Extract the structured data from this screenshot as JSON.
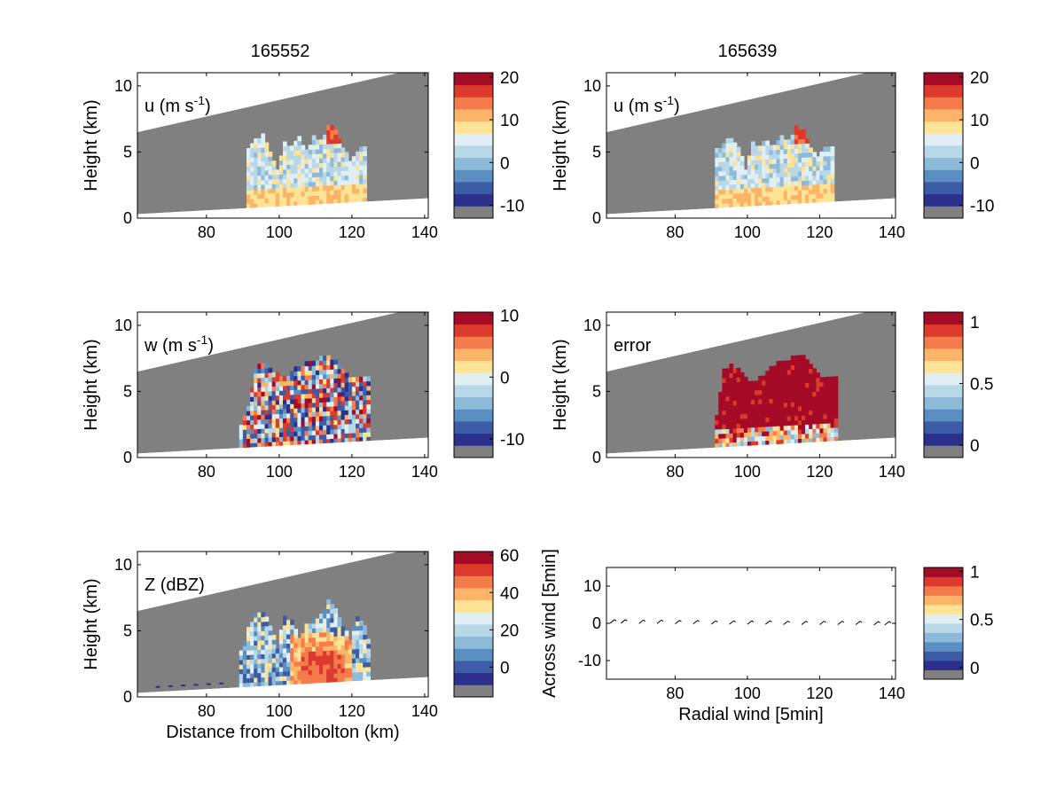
{
  "column_titles": [
    "165552",
    "165639"
  ],
  "colors": {
    "palette": [
      "#808080",
      "#2c2f8c",
      "#3c5ca8",
      "#5b8fc2",
      "#8dbad8",
      "#b8d8e8",
      "#e1eef3",
      "#fde395",
      "#fbb468",
      "#f47c4c",
      "#db3a2c",
      "#a40b26"
    ],
    "terrain_gray": "#808080",
    "frame": "#000000"
  },
  "chart_data": [
    {
      "type": "heatmap",
      "panel": "u-165552",
      "title": "",
      "label": "u (m s",
      "label_sup": "-1",
      "label_tail": ")",
      "ylabel": "Height (km)",
      "xlabel": "",
      "xlim": [
        61,
        141
      ],
      "ylim": [
        0,
        11
      ],
      "xticks": [
        80,
        100,
        120,
        140
      ],
      "yticks": [
        0,
        5,
        10
      ],
      "colorbar": {
        "range": [
          -13,
          21
        ],
        "ticks": [
          -10,
          0,
          10,
          20
        ],
        "tick_labels": [
          "-10",
          "0",
          "10",
          "20"
        ]
      },
      "shading": "u",
      "echo": {
        "x": [
          91,
          93,
          95,
          97,
          99,
          101,
          103,
          105,
          107,
          109,
          111,
          113,
          115,
          117,
          119,
          121,
          123,
          124
        ],
        "top": [
          5.2,
          5.8,
          6.1,
          5.0,
          3.4,
          5.6,
          5.3,
          5.9,
          5.1,
          6.0,
          5.7,
          6.9,
          6.6,
          5.2,
          4.2,
          5.0,
          5.4,
          2.6
        ]
      }
    },
    {
      "type": "heatmap",
      "panel": "u-165639",
      "title": "",
      "label": "u (m s",
      "label_sup": "-1",
      "label_tail": ")",
      "ylabel": "Height (km)",
      "xlabel": "",
      "xlim": [
        61,
        141
      ],
      "ylim": [
        0,
        11
      ],
      "xticks": [
        80,
        100,
        120,
        140
      ],
      "yticks": [
        0,
        5,
        10
      ],
      "colorbar": {
        "range": [
          -13,
          21
        ],
        "ticks": [
          -10,
          0,
          10,
          20
        ],
        "tick_labels": [
          "-10",
          "0",
          "10",
          "20"
        ]
      },
      "shading": "u",
      "echo": {
        "x": [
          91,
          93,
          95,
          97,
          99,
          101,
          103,
          105,
          107,
          109,
          111,
          113,
          115,
          117,
          119,
          121,
          123,
          124
        ],
        "top": [
          5.0,
          5.6,
          6.0,
          5.2,
          3.6,
          5.5,
          5.4,
          5.8,
          5.2,
          6.1,
          5.6,
          6.7,
          6.4,
          5.0,
          4.4,
          5.1,
          5.2,
          2.8
        ]
      }
    },
    {
      "type": "heatmap",
      "panel": "w-165552",
      "title": "",
      "label": "w (m s",
      "label_sup": "-1",
      "label_tail": ")",
      "ylabel": "Height (km)",
      "xlabel": "",
      "xlim": [
        61,
        141
      ],
      "ylim": [
        0,
        11
      ],
      "xticks": [
        80,
        100,
        120,
        140
      ],
      "yticks": [
        0,
        5,
        10
      ],
      "colorbar": {
        "range": [
          -13,
          10.5
        ],
        "ticks": [
          -10,
          0,
          10
        ],
        "tick_labels": [
          "-10",
          "0",
          "10"
        ]
      },
      "shading": "w",
      "echo": {
        "x": [
          89,
          91,
          93,
          95,
          97,
          99,
          101,
          103,
          105,
          107,
          109,
          111,
          113,
          115,
          117,
          119,
          121,
          123,
          125
        ],
        "top": [
          2.4,
          3.6,
          6.6,
          6.9,
          6.7,
          6.2,
          5.9,
          6.3,
          6.8,
          7.0,
          7.2,
          7.4,
          7.6,
          7.1,
          6.4,
          5.8,
          6.0,
          6.1,
          6.0
        ]
      }
    },
    {
      "type": "heatmap",
      "panel": "error-165639",
      "title": "",
      "label": "error",
      "label_sup": "",
      "label_tail": "",
      "ylabel": "Height (km)",
      "xlabel": "",
      "xlim": [
        61,
        141
      ],
      "ylim": [
        0,
        11
      ],
      "xticks": [
        80,
        100,
        120,
        140
      ],
      "yticks": [
        0,
        5,
        10
      ],
      "colorbar": {
        "range": [
          -0.1,
          1.08
        ],
        "ticks": [
          0,
          0.5,
          1
        ],
        "tick_labels": [
          "0",
          "0.5",
          "1"
        ]
      },
      "shading": "error",
      "echo": {
        "x": [
          91,
          93,
          95,
          97,
          99,
          101,
          103,
          105,
          107,
          109,
          111,
          113,
          115,
          117,
          119,
          121,
          123,
          125
        ],
        "top": [
          3.0,
          6.5,
          6.8,
          6.6,
          5.8,
          5.6,
          5.9,
          6.4,
          6.9,
          7.1,
          7.3,
          7.5,
          7.6,
          7.0,
          6.1,
          5.9,
          6.0,
          6.1
        ]
      }
    },
    {
      "type": "heatmap",
      "panel": "Z-165552",
      "title": "",
      "label": "Z (dBZ)",
      "label_sup": "",
      "label_tail": "",
      "ylabel": "Height (km)",
      "xlabel": "Distance from Chilbolton (km)",
      "xlim": [
        61,
        141
      ],
      "ylim": [
        0,
        11
      ],
      "xticks": [
        80,
        100,
        120,
        140
      ],
      "yticks": [
        0,
        5,
        10
      ],
      "colorbar": {
        "range": [
          -16,
          62
        ],
        "ticks": [
          0,
          20,
          40,
          60
        ],
        "tick_labels": [
          "0",
          "20",
          "40",
          "60"
        ]
      },
      "shading": "Z",
      "echo": {
        "x": [
          89,
          91,
          93,
          95,
          97,
          99,
          101,
          103,
          105,
          107,
          109,
          111,
          113,
          115,
          117,
          119,
          121,
          123,
          125
        ],
        "top": [
          3.2,
          5.0,
          6.3,
          6.4,
          5.2,
          3.6,
          6.1,
          5.5,
          4.3,
          5.2,
          5.6,
          6.0,
          7.1,
          6.5,
          5.3,
          4.2,
          6.0,
          5.2,
          3.0
        ]
      }
    },
    {
      "type": "scatter",
      "panel": "wind-vectors",
      "title": "",
      "label": "",
      "ylabel": "Across wind [5min]",
      "xlabel": "Radial wind [5min]",
      "xlim": [
        61,
        141
      ],
      "ylim": [
        -15,
        15
      ],
      "xticks": [
        80,
        100,
        120,
        140
      ],
      "yticks": [
        -10,
        0,
        10
      ],
      "ytick_labels": [
        "-10",
        "0",
        "10"
      ],
      "colorbar": {
        "range": [
          -0.12,
          1.04
        ],
        "ticks": [
          0,
          0.5,
          1
        ],
        "tick_labels": [
          "0",
          "0.5",
          "1"
        ]
      },
      "x": [
        62,
        65,
        70,
        75,
        80,
        85,
        90,
        95,
        100,
        105,
        110,
        115,
        120,
        125,
        130,
        135,
        138
      ],
      "y": [
        0.4,
        0.4,
        0.3,
        0.3,
        0.2,
        0.2,
        0.1,
        0.1,
        0.1,
        0.1,
        0.0,
        0.0,
        0.0,
        0.0,
        0.0,
        -0.1,
        -0.1
      ]
    }
  ]
}
